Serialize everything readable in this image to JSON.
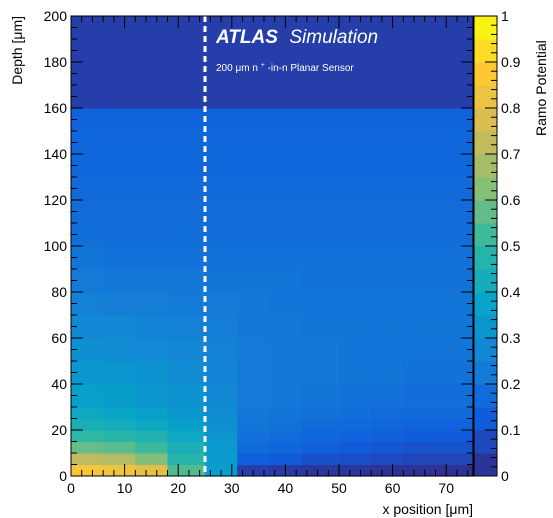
{
  "chart_data": {
    "type": "heatmap",
    "title": "",
    "xlabel": "x position [μm]",
    "ylabel": "Depth [μm]",
    "zlabel": "Ramo Potential",
    "xlim": [
      0,
      75
    ],
    "ylim": [
      0,
      200
    ],
    "zlim": [
      0,
      1
    ],
    "x_ticks": [
      "0",
      "10",
      "20",
      "30",
      "40",
      "50",
      "60",
      "70"
    ],
    "y_ticks": [
      "0",
      "20",
      "40",
      "60",
      "80",
      "100",
      "120",
      "140",
      "160",
      "180",
      "200"
    ],
    "z_ticks": [
      "0",
      "0.1",
      "0.2",
      "0.3",
      "0.4",
      "0.5",
      "0.6",
      "0.7",
      "0.8",
      "0.9",
      "1"
    ],
    "x_bin_edges": [
      0,
      6,
      12,
      18,
      25,
      31,
      37,
      43,
      50,
      56,
      62,
      68,
      75
    ],
    "y_bin_edges": [
      0,
      5,
      10,
      15,
      20,
      25,
      30,
      40,
      50,
      60,
      70,
      80,
      90,
      100,
      110,
      120,
      130,
      140,
      150,
      160,
      200
    ],
    "z_rows": [
      [
        0.85,
        0.83,
        0.8,
        0.55,
        0.35,
        0.05,
        0.04,
        0.03,
        0.03,
        0.02,
        0.02,
        0.02
      ],
      [
        0.72,
        0.7,
        0.62,
        0.48,
        0.35,
        0.14,
        0.12,
        0.1,
        0.09,
        0.08,
        0.07,
        0.07
      ],
      [
        0.58,
        0.56,
        0.52,
        0.44,
        0.34,
        0.18,
        0.16,
        0.14,
        0.12,
        0.11,
        0.1,
        0.1
      ],
      [
        0.5,
        0.48,
        0.46,
        0.4,
        0.32,
        0.2,
        0.18,
        0.16,
        0.15,
        0.14,
        0.13,
        0.12
      ],
      [
        0.44,
        0.42,
        0.4,
        0.36,
        0.3,
        0.21,
        0.2,
        0.18,
        0.17,
        0.16,
        0.15,
        0.15
      ],
      [
        0.4,
        0.38,
        0.36,
        0.33,
        0.29,
        0.22,
        0.21,
        0.2,
        0.19,
        0.18,
        0.17,
        0.17
      ],
      [
        0.36,
        0.35,
        0.33,
        0.31,
        0.27,
        0.23,
        0.22,
        0.21,
        0.2,
        0.2,
        0.19,
        0.19
      ],
      [
        0.33,
        0.32,
        0.31,
        0.29,
        0.26,
        0.23,
        0.22,
        0.22,
        0.21,
        0.21,
        0.2,
        0.2
      ],
      [
        0.3,
        0.29,
        0.28,
        0.27,
        0.25,
        0.23,
        0.22,
        0.22,
        0.21,
        0.21,
        0.21,
        0.21
      ],
      [
        0.27,
        0.27,
        0.26,
        0.25,
        0.24,
        0.22,
        0.22,
        0.21,
        0.21,
        0.21,
        0.21,
        0.21
      ],
      [
        0.25,
        0.24,
        0.24,
        0.23,
        0.23,
        0.22,
        0.21,
        0.21,
        0.21,
        0.21,
        0.21,
        0.21
      ],
      [
        0.23,
        0.22,
        0.22,
        0.22,
        0.21,
        0.21,
        0.21,
        0.2,
        0.2,
        0.2,
        0.2,
        0.2
      ],
      [
        0.21,
        0.2,
        0.2,
        0.2,
        0.2,
        0.2,
        0.2,
        0.2,
        0.2,
        0.2,
        0.2,
        0.2
      ],
      [
        0.19,
        0.19,
        0.19,
        0.19,
        0.19,
        0.19,
        0.19,
        0.19,
        0.19,
        0.19,
        0.19,
        0.19
      ],
      [
        0.18,
        0.18,
        0.18,
        0.18,
        0.18,
        0.18,
        0.18,
        0.18,
        0.18,
        0.18,
        0.18,
        0.18
      ],
      [
        0.17,
        0.17,
        0.17,
        0.17,
        0.17,
        0.17,
        0.17,
        0.17,
        0.17,
        0.17,
        0.17,
        0.17
      ],
      [
        0.16,
        0.16,
        0.16,
        0.16,
        0.16,
        0.16,
        0.16,
        0.16,
        0.16,
        0.16,
        0.16,
        0.16
      ],
      [
        0.16,
        0.16,
        0.16,
        0.16,
        0.16,
        0.16,
        0.16,
        0.16,
        0.16,
        0.16,
        0.16,
        0.16
      ],
      [
        0.15,
        0.15,
        0.15,
        0.15,
        0.15,
        0.15,
        0.15,
        0.15,
        0.15,
        0.15,
        0.15,
        0.15
      ],
      [
        0.05,
        0.05,
        0.05,
        0.05,
        0.05,
        0.05,
        0.05,
        0.05,
        0.05,
        0.05,
        0.05,
        0.05
      ]
    ],
    "vertical_marker_x": 25,
    "marker_style": "white-dashed",
    "atlas_label_bold": "ATLAS",
    "atlas_label_rest": "Simulation",
    "subtitle_pre": "200 μm n",
    "subtitle_sup": "+",
    "subtitle_post": "-in-n Planar Sensor",
    "colormap": "parula",
    "colormap_stops": [
      "#352a87",
      "#0f5cdd",
      "#1481d6",
      "#06a4ca",
      "#2eb7a4",
      "#87bf77",
      "#d1bb59",
      "#fec832",
      "#f9fb0e"
    ],
    "grid": false,
    "legend": "colorbar-right"
  }
}
